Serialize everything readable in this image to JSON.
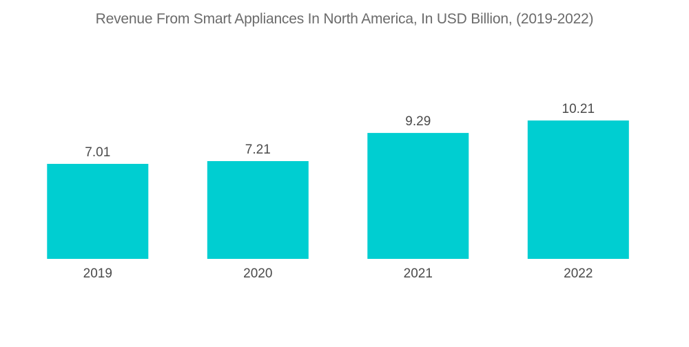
{
  "chart_data": {
    "type": "bar",
    "title": "Revenue From Smart Appliances In North America, In USD Billion, (2019-2022)",
    "categories": [
      "2019",
      "2020",
      "2021",
      "2022"
    ],
    "values": [
      7.01,
      7.21,
      9.29,
      10.21
    ],
    "data_labels": [
      "7.01",
      "7.21",
      "9.29",
      "10.21"
    ],
    "xlabel": "",
    "ylabel": "",
    "ylim": [
      0,
      12.9
    ],
    "grid": false,
    "legend": "none",
    "colors": {
      "bar": "#00CED1"
    }
  }
}
